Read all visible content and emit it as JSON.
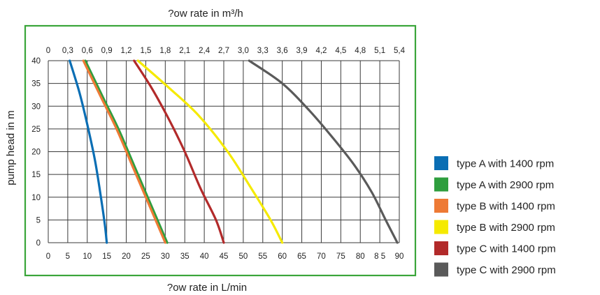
{
  "chart_data": {
    "type": "line",
    "top_axis_title": "?ow rate in m³/h",
    "xlabel": "?ow rate in L/min",
    "ylabel": "pump head in m",
    "xlim": [
      0,
      90
    ],
    "ylim": [
      0,
      40
    ],
    "grid": true,
    "legend_position": "right",
    "x_ticks": [
      "0",
      "5",
      "10",
      "15",
      "20",
      "25",
      "30",
      "35",
      "40",
      "45",
      "50",
      "55",
      "60",
      "65",
      "70",
      "75",
      "80",
      "8 5",
      "90"
    ],
    "y_ticks": [
      "0",
      "5",
      "10",
      "15",
      "20",
      "25",
      "30",
      "35",
      "40"
    ],
    "top_ticks": [
      "0",
      "0,3",
      "0,6",
      "0,9",
      "1,2",
      "1,5",
      "1,8",
      "2,1",
      "2,4",
      "2,7",
      "3,0",
      "3,3",
      "3,6",
      "3,9",
      "4,2",
      "4,5",
      "4,8",
      "5,1",
      "5,4"
    ],
    "series": [
      {
        "name": "type A with 1400 rpm",
        "color": "#0a6eb4",
        "x": [
          5.5,
          8,
          10,
          12,
          13.5,
          14.5,
          15
        ],
        "y": [
          40,
          33,
          26,
          18,
          10,
          4,
          0
        ]
      },
      {
        "name": "type A with 2900 rpm",
        "color": "#2e9e3e",
        "x": [
          9.5,
          14,
          18,
          22,
          25.5,
          28.5,
          30.5
        ],
        "y": [
          40,
          32,
          25,
          17,
          10,
          4,
          0
        ]
      },
      {
        "name": "type B with 1400 rpm",
        "color": "#ee7a35",
        "x": [
          9,
          13.5,
          17.5,
          21.5,
          25,
          28,
          30
        ],
        "y": [
          40,
          32,
          25,
          17,
          10,
          4,
          0
        ]
      },
      {
        "name": "type B with 2900 rpm",
        "color": "#f5ea00",
        "x": [
          23,
          31,
          38.5,
          46,
          52,
          57,
          60
        ],
        "y": [
          40,
          34,
          28,
          20,
          12,
          5,
          0
        ]
      },
      {
        "name": "type C with 1400 rpm",
        "color": "#b22a2a",
        "x": [
          22,
          26.5,
          31,
          35,
          39,
          43,
          45
        ],
        "y": [
          40,
          34,
          27,
          20,
          12,
          5,
          0
        ]
      },
      {
        "name": "type C with 2900 rpm",
        "color": "#5a5a5a",
        "x": [
          51.5,
          60,
          67,
          73,
          78.5,
          83,
          86.5,
          89.5
        ],
        "y": [
          40,
          35,
          29,
          23,
          17,
          11,
          5,
          0
        ]
      }
    ]
  }
}
